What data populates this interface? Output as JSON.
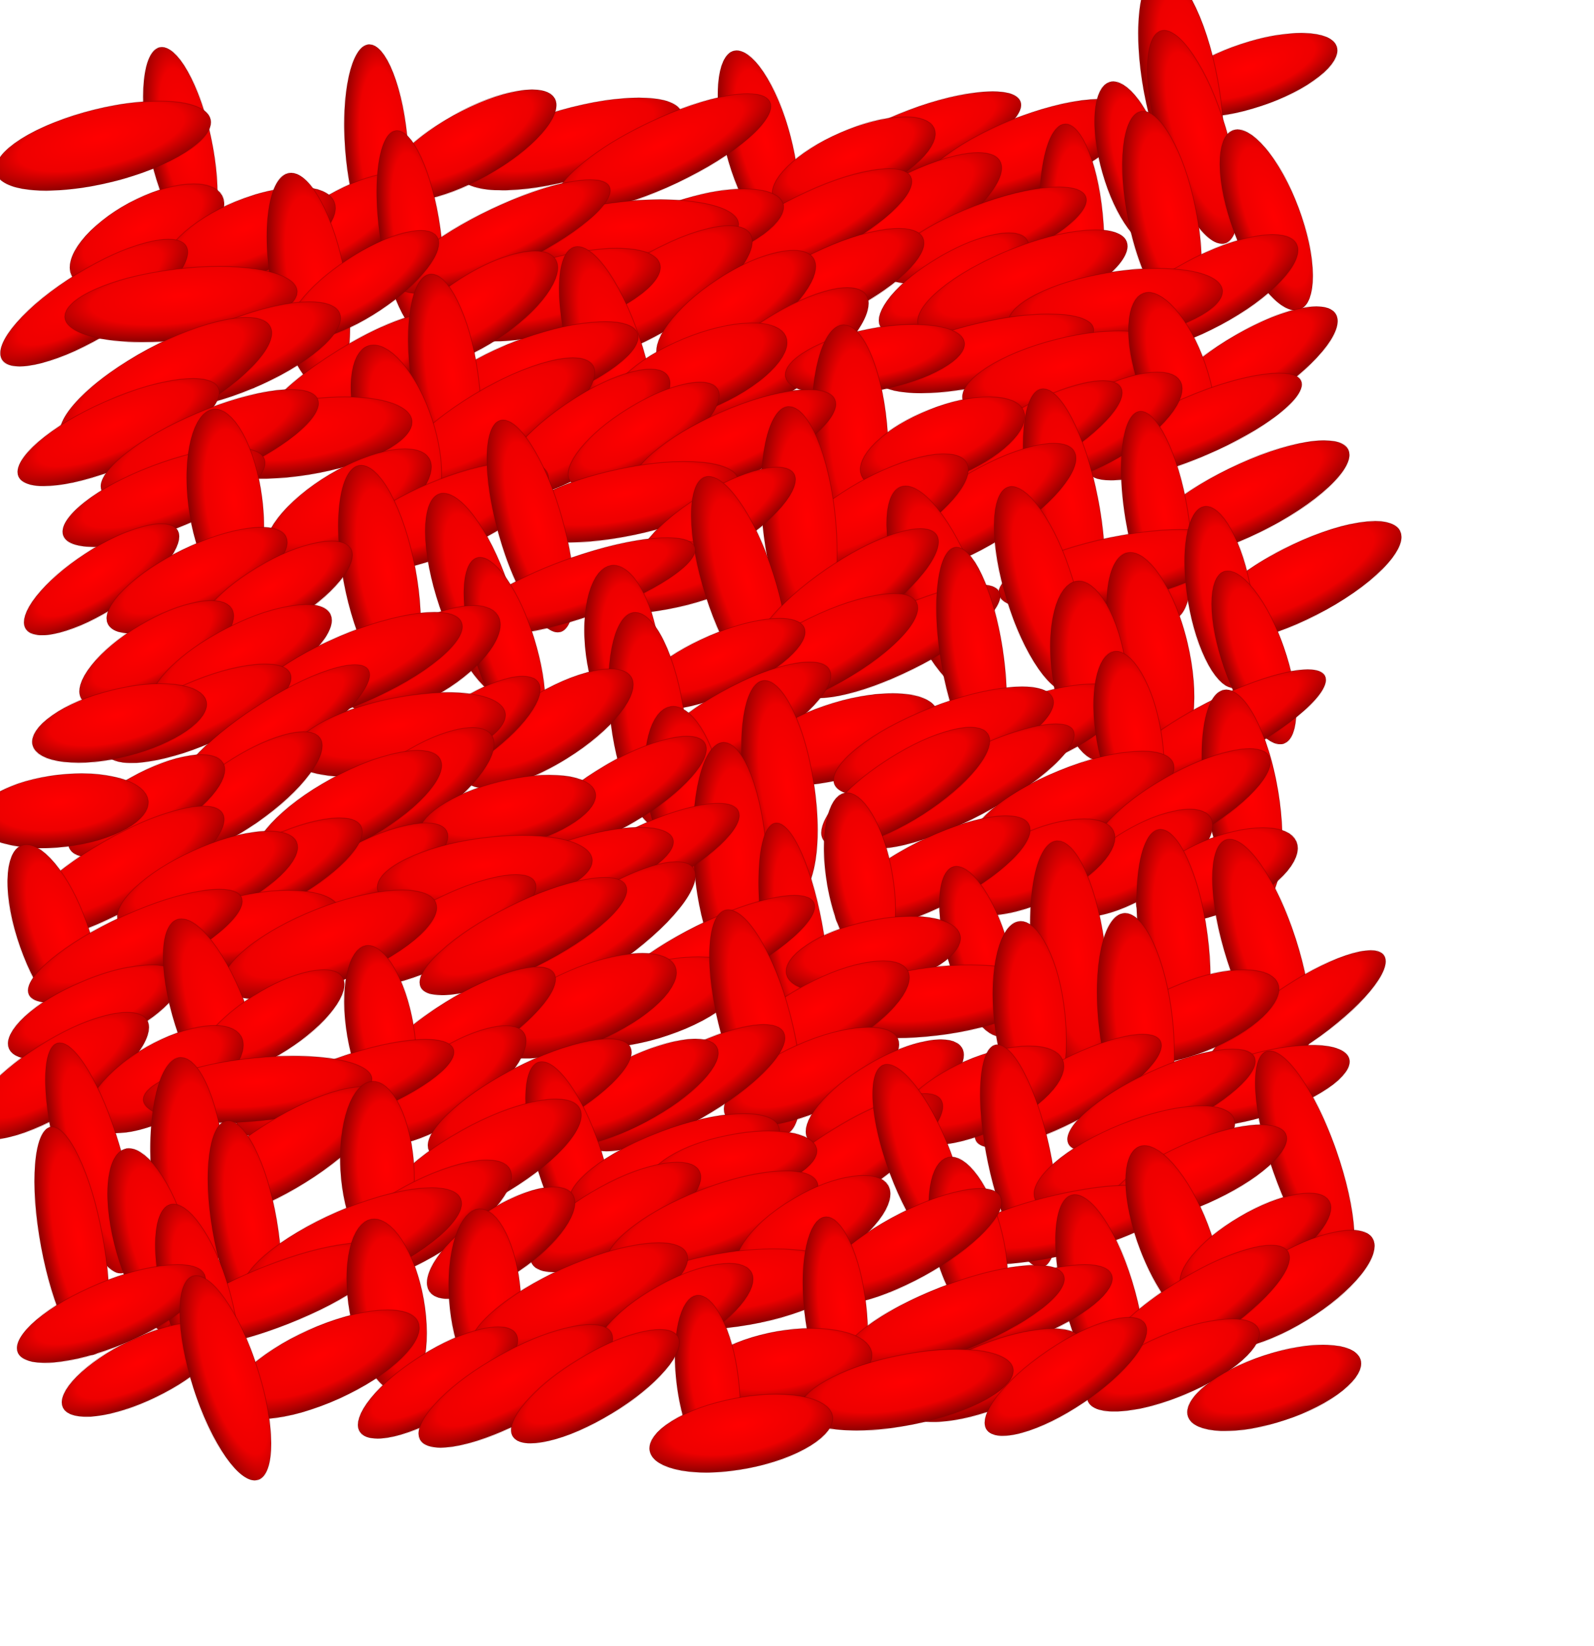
{
  "scene": {
    "background": "#ffffff",
    "particle_color": "#ff0000",
    "particle_dark": "#8a0000",
    "particle_shape": "prolate-ellipsoid",
    "orientations": [
      "tilted-left",
      "tilted-right",
      "near-vertical"
    ]
  }
}
